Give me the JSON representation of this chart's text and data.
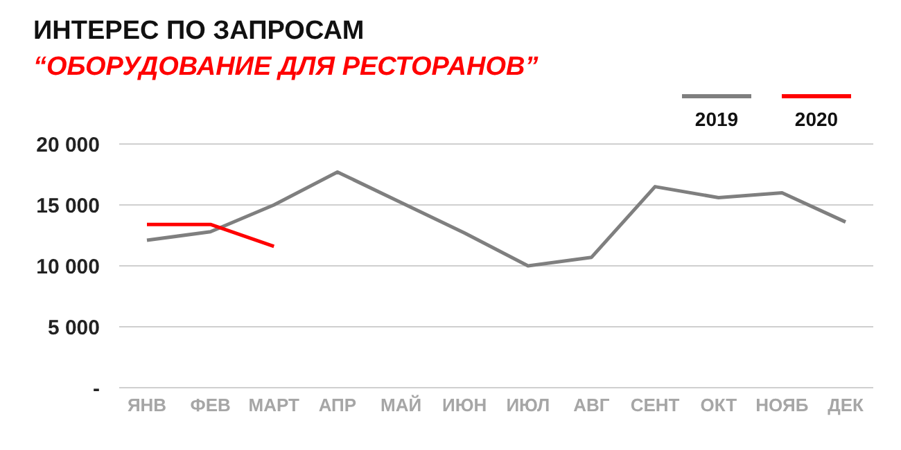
{
  "chart_data": {
    "type": "line",
    "title": "ИНТЕРЕС ПО ЗАПРОСАМ",
    "subtitle": "“ОБОРУДОВАНИЕ ДЛЯ РЕСТОРАНОВ”",
    "categories": [
      "ЯНВ",
      "ФЕВ",
      "МАРТ",
      "АПР",
      "МАЙ",
      "ИЮН",
      "ИЮЛ",
      "АВГ",
      "СЕНТ",
      "ОКТ",
      "НОЯБ",
      "ДЕК"
    ],
    "series": [
      {
        "name": "2019",
        "color": "#7f7f7f",
        "values": [
          12100,
          12800,
          15000,
          17700,
          15200,
          12700,
          10000,
          10700,
          16500,
          15600,
          16000,
          13600
        ]
      },
      {
        "name": "2020",
        "color": "#ff0000",
        "values": [
          13400,
          13400,
          11600,
          null,
          null,
          null,
          null,
          null,
          null,
          null,
          null,
          null
        ]
      }
    ],
    "ylim": [
      0,
      20000
    ],
    "yticks": [
      {
        "value": 0,
        "label": "-"
      },
      {
        "value": 5000,
        "label": "5 000"
      },
      {
        "value": 10000,
        "label": "10 000"
      },
      {
        "value": 15000,
        "label": "15 000"
      },
      {
        "value": 20000,
        "label": "20 000"
      }
    ],
    "grid": "y",
    "legend": "top right",
    "marker": "none",
    "line_style": "solid"
  }
}
